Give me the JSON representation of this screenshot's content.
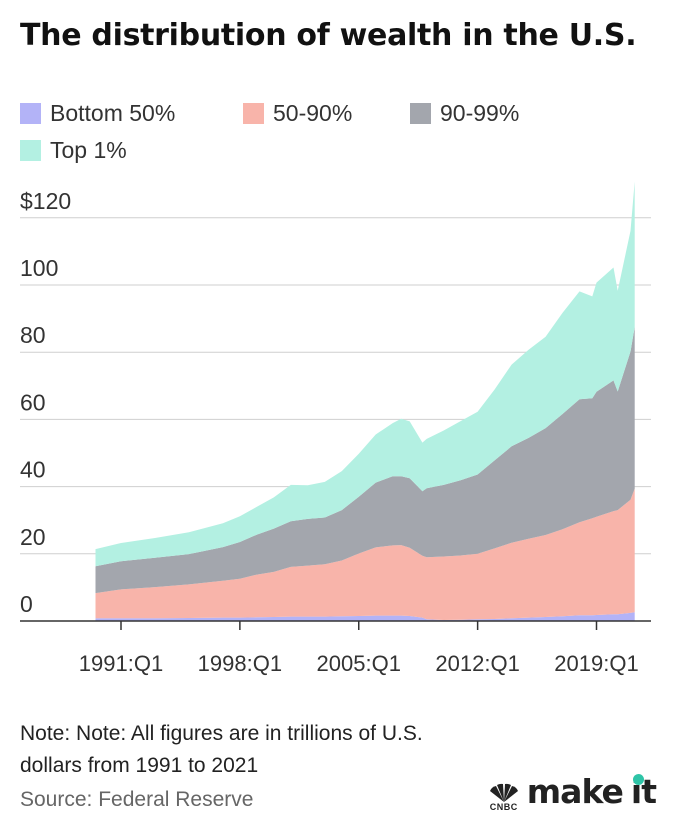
{
  "title": "The distribution of wealth in the U.S.",
  "legend": [
    {
      "label": "Bottom 50%",
      "color": "#b3b3f7"
    },
    {
      "label": "50-90%",
      "color": "#f8b4aa"
    },
    {
      "label": "90-99%",
      "color": "#a3a6ad"
    },
    {
      "label": "Top 1%",
      "color": "#b3f0e2"
    }
  ],
  "note": "Note: Note: All figures are in trillions of U.S. dollars from 1991 to 2021",
  "source": "Source: Federal Reserve",
  "brand": {
    "mark": "CNBC",
    "text_1": "make",
    "text_2": "it",
    "icon": "peacock-icon",
    "accent": "#2ec4a7"
  },
  "chart_data": {
    "type": "area",
    "stacked": true,
    "x": [
      "1989:Q3",
      "1991:Q1",
      "1993:Q1",
      "1995:Q1",
      "1997:Q1",
      "1998:Q1",
      "1999:Q1",
      "2000:Q1",
      "2001:Q1",
      "2002:Q1",
      "2003:Q1",
      "2004:Q1",
      "2005:Q1",
      "2006:Q1",
      "2007:Q1",
      "2007:Q3",
      "2008:Q1",
      "2008:Q4",
      "2009:Q1",
      "2010:Q1",
      "2011:Q1",
      "2012:Q1",
      "2013:Q1",
      "2014:Q1",
      "2015:Q1",
      "2016:Q1",
      "2017:Q1",
      "2018:Q1",
      "2018:Q4",
      "2019:Q1",
      "2020:Q1",
      "2020:Q2",
      "2021:Q1",
      "2021:Q2"
    ],
    "series": [
      {
        "name": "Bottom 50%",
        "values": [
          0.8,
          0.8,
          0.8,
          0.9,
          1.0,
          1.0,
          1.1,
          1.2,
          1.3,
          1.3,
          1.3,
          1.4,
          1.5,
          1.6,
          1.6,
          1.6,
          1.5,
          1.0,
          0.5,
          0.3,
          0.4,
          0.5,
          0.6,
          0.8,
          1.0,
          1.2,
          1.4,
          1.7,
          1.7,
          1.8,
          2.0,
          2.0,
          2.4,
          2.6
        ]
      },
      {
        "name": "50-90%",
        "values": [
          7.5,
          8.6,
          9.3,
          10.0,
          11.0,
          11.6,
          12.7,
          13.4,
          14.8,
          15.2,
          15.6,
          16.6,
          18.6,
          20.3,
          20.9,
          21.0,
          20.3,
          18.4,
          18.5,
          18.9,
          19.1,
          19.5,
          21.0,
          22.5,
          23.5,
          24.4,
          25.9,
          27.7,
          28.9,
          29.2,
          30.7,
          31.0,
          33.7,
          36.8
        ]
      },
      {
        "name": "90-99%",
        "values": [
          8.0,
          8.4,
          8.7,
          9.0,
          10.0,
          10.9,
          11.9,
          12.9,
          13.6,
          13.9,
          13.9,
          15.0,
          16.9,
          19.3,
          20.6,
          20.5,
          20.7,
          19.2,
          20.5,
          21.3,
          22.4,
          23.6,
          26.2,
          28.7,
          30.0,
          31.8,
          34.3,
          36.6,
          35.7,
          37.2,
          38.9,
          35.3,
          44.1,
          48.1
        ]
      },
      {
        "name": "Top 1%",
        "values": [
          5.1,
          5.4,
          5.9,
          6.5,
          7.1,
          7.7,
          8.3,
          9.3,
          10.8,
          10.0,
          10.6,
          11.6,
          12.8,
          14.3,
          15.8,
          17.1,
          16.9,
          14.5,
          14.7,
          16.2,
          17.6,
          18.7,
          21.1,
          24.3,
          26.2,
          27.2,
          30.1,
          32.1,
          30.3,
          32.5,
          33.6,
          30.0,
          35.9,
          43.3
        ]
      }
    ],
    "x_ticks": [
      "1991:Q1",
      "1998:Q1",
      "2005:Q1",
      "2012:Q1",
      "2019:Q1"
    ],
    "y_ticks": [
      0,
      20,
      40,
      60,
      80,
      100,
      120
    ],
    "y_tick_labels": [
      "0",
      "20",
      "40",
      "60",
      "80",
      "100",
      "$120"
    ],
    "ylim": [
      0,
      130
    ],
    "grid": true
  }
}
